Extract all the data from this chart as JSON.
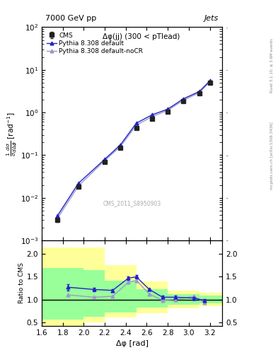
{
  "title_left": "7000 GeV pp",
  "title_right": "Jets",
  "annotation": "Δφ(jj) (300 < pTlead)",
  "watermark": "CMS_2011_S8950903",
  "right_label": "mcplots.cern.ch [arXiv:1306.3436]",
  "right_label2": "Rivet 3.1.10; ≥ 3.6M events",
  "ylabel_main": "$\\frac{1}{\\sigma}\\frac{d\\sigma}{d\\Delta\\phi}$ [rad$^{-1}$]",
  "ylabel_ratio": "Ratio to CMS",
  "xlabel": "Δφ [rad]",
  "xlim": [
    1.6,
    3.32
  ],
  "ylim_main": [
    0.001,
    100.0
  ],
  "ylim_ratio": [
    0.42,
    2.3
  ],
  "cms_x": [
    1.75,
    1.95,
    2.2,
    2.35,
    2.5,
    2.65,
    2.8,
    2.95,
    3.1,
    3.2
  ],
  "cms_y": [
    0.003,
    0.018,
    0.07,
    0.15,
    0.43,
    0.72,
    1.05,
    1.85,
    2.8,
    5.0
  ],
  "cms_yerr": [
    0.0003,
    0.001,
    0.005,
    0.01,
    0.02,
    0.04,
    0.05,
    0.08,
    0.15,
    0.3
  ],
  "pythia_default_x": [
    1.75,
    1.95,
    2.2,
    2.35,
    2.5,
    2.65,
    2.8,
    2.95,
    3.1,
    3.2
  ],
  "pythia_default_y": [
    0.0038,
    0.022,
    0.08,
    0.175,
    0.56,
    0.88,
    1.2,
    2.1,
    3.1,
    5.5
  ],
  "pythia_nocr_x": [
    1.75,
    1.95,
    2.2,
    2.35,
    2.5,
    2.65,
    2.8,
    2.95,
    3.1,
    3.2
  ],
  "pythia_nocr_y": [
    0.0033,
    0.019,
    0.075,
    0.16,
    0.5,
    0.8,
    1.12,
    1.95,
    2.9,
    5.2
  ],
  "ratio_default_x": [
    1.85,
    2.1,
    2.275,
    2.425,
    2.5,
    2.625,
    2.75,
    2.875,
    3.05,
    3.15
  ],
  "ratio_default_y": [
    1.27,
    1.22,
    1.2,
    1.47,
    1.5,
    1.22,
    1.05,
    1.05,
    1.03,
    0.98
  ],
  "ratio_default_yerr": [
    0.07,
    0.04,
    0.03,
    0.04,
    0.04,
    0.03,
    0.03,
    0.03,
    0.03,
    0.03
  ],
  "ratio_nocr_x": [
    1.85,
    2.1,
    2.275,
    2.425,
    2.5,
    2.625,
    2.75,
    2.875,
    3.05,
    3.15
  ],
  "ratio_nocr_y": [
    1.1,
    1.05,
    1.07,
    1.38,
    1.42,
    1.12,
    0.98,
    1.0,
    1.07,
    0.93
  ],
  "band_yellow_edges": [
    1.6,
    2.0,
    2.2,
    2.5,
    2.8,
    3.1,
    3.32
  ],
  "band_yellow_lo": [
    0.42,
    0.5,
    0.6,
    0.7,
    0.8,
    0.85,
    0.88
  ],
  "band_yellow_hi": [
    2.15,
    2.15,
    1.75,
    1.4,
    1.2,
    1.15,
    1.12
  ],
  "band_green_edges": [
    1.6,
    2.0,
    2.2,
    2.5,
    2.8,
    3.1,
    3.32
  ],
  "band_green_lo": [
    0.55,
    0.62,
    0.72,
    0.82,
    0.88,
    0.92,
    0.94
  ],
  "band_green_hi": [
    1.7,
    1.65,
    1.42,
    1.22,
    1.12,
    1.08,
    1.06
  ],
  "cms_color": "#222222",
  "pythia_default_color": "#2222cc",
  "pythia_nocr_color": "#9999cc",
  "yellow_color": "#ffff99",
  "green_color": "#99ff99"
}
